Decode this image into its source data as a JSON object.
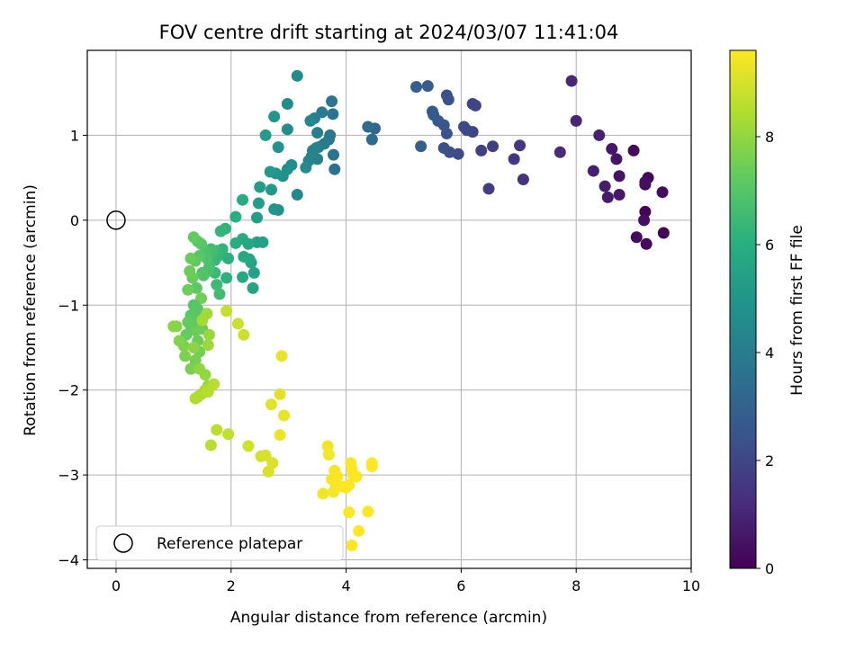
{
  "chart_data": {
    "type": "scatter",
    "title": "FOV centre drift starting at 2024/03/07 11:41:04",
    "xlabel": "Angular distance from reference (arcmin)",
    "ylabel": "Rotation from reference (arcmin)",
    "xlim": [
      -0.5,
      10
    ],
    "ylim": [
      -4.1,
      2.0
    ],
    "xticks": [
      0,
      2,
      4,
      6,
      8,
      10
    ],
    "yticks": [
      -4,
      -3,
      -2,
      -1,
      0,
      1
    ],
    "grid": true,
    "legend": {
      "placement": "lower-left",
      "entries": [
        "Reference platepar"
      ]
    },
    "reference_point": {
      "x": 0,
      "y": 0,
      "label": "Reference platepar"
    },
    "colorbar": {
      "label": "Hours from first FF file",
      "colormap": "viridis",
      "range": [
        0,
        9.6
      ],
      "ticks": [
        0,
        2,
        4,
        6,
        8
      ]
    },
    "points": [
      [
        9.2,
        0.1,
        0.1
      ],
      [
        9.25,
        0.5,
        0.15
      ],
      [
        9.2,
        0.42,
        0.2
      ],
      [
        9.0,
        0.82,
        0.25
      ],
      [
        9.5,
        0.33,
        0.3
      ],
      [
        9.52,
        -0.15,
        0.1
      ],
      [
        9.22,
        -0.28,
        0.2
      ],
      [
        9.05,
        -0.2,
        0.3
      ],
      [
        9.18,
        0.0,
        0.35
      ],
      [
        9.2,
        0.45,
        0.4
      ],
      [
        8.75,
        0.52,
        0.5
      ],
      [
        8.7,
        0.72,
        0.55
      ],
      [
        8.62,
        0.84,
        0.6
      ],
      [
        8.75,
        0.3,
        0.65
      ],
      [
        8.55,
        0.27,
        0.7
      ],
      [
        8.5,
        0.4,
        0.75
      ],
      [
        8.3,
        0.58,
        0.85
      ],
      [
        8.4,
        1.0,
        0.9
      ],
      [
        8.0,
        1.17,
        1.0
      ],
      [
        7.92,
        1.64,
        1.05
      ],
      [
        7.72,
        0.8,
        1.2
      ],
      [
        7.08,
        0.48,
        1.4
      ],
      [
        7.02,
        0.88,
        1.5
      ],
      [
        6.92,
        0.72,
        1.6
      ],
      [
        6.48,
        0.37,
        1.7
      ],
      [
        6.55,
        0.87,
        1.75
      ],
      [
        6.35,
        0.82,
        1.8
      ],
      [
        6.25,
        1.35,
        1.9
      ],
      [
        6.2,
        1.37,
        1.95
      ],
      [
        6.2,
        1.04,
        2.0
      ],
      [
        6.1,
        1.06,
        2.05
      ],
      [
        6.05,
        1.1,
        2.1
      ],
      [
        5.95,
        0.78,
        2.2
      ],
      [
        5.8,
        0.8,
        2.3
      ],
      [
        5.7,
        0.85,
        2.35
      ],
      [
        5.78,
        1.42,
        2.4
      ],
      [
        5.75,
        1.47,
        2.45
      ],
      [
        5.75,
        1.02,
        2.5
      ],
      [
        5.7,
        1.12,
        2.55
      ],
      [
        5.6,
        1.17,
        2.6
      ],
      [
        5.5,
        1.28,
        2.65
      ],
      [
        5.52,
        1.24,
        2.7
      ],
      [
        5.42,
        1.58,
        2.8
      ],
      [
        5.22,
        1.57,
        2.85
      ],
      [
        5.3,
        0.87,
        2.9
      ],
      [
        4.5,
        1.08,
        3.2
      ],
      [
        4.38,
        1.1,
        3.3
      ],
      [
        4.45,
        0.95,
        3.35
      ],
      [
        3.8,
        0.6,
        3.6
      ],
      [
        3.78,
        0.77,
        3.65
      ],
      [
        3.75,
        1.4,
        3.7
      ],
      [
        3.77,
        1.25,
        3.75
      ],
      [
        3.72,
        1.0,
        3.8
      ],
      [
        3.7,
        0.95,
        3.85
      ],
      [
        3.62,
        0.9,
        3.9
      ],
      [
        3.58,
        1.27,
        3.95
      ],
      [
        3.52,
        0.86,
        4.0
      ],
      [
        3.5,
        1.03,
        4.05
      ],
      [
        3.45,
        1.2,
        4.1
      ],
      [
        3.5,
        0.72,
        4.15
      ],
      [
        3.48,
        0.85,
        4.2
      ],
      [
        3.42,
        0.82,
        4.25
      ],
      [
        3.4,
        0.75,
        4.3
      ],
      [
        3.35,
        0.7,
        4.35
      ],
      [
        3.38,
        1.17,
        4.4
      ],
      [
        3.3,
        0.62,
        4.45
      ],
      [
        3.15,
        0.3,
        4.5
      ],
      [
        3.15,
        1.7,
        4.55
      ],
      [
        3.05,
        0.65,
        4.6
      ],
      [
        2.98,
        1.07,
        4.65
      ],
      [
        2.98,
        1.37,
        4.7
      ],
      [
        2.98,
        0.6,
        4.75
      ],
      [
        2.9,
        0.52,
        4.8
      ],
      [
        2.82,
        0.86,
        4.85
      ],
      [
        2.82,
        0.12,
        4.9
      ],
      [
        2.78,
        0.55,
        4.95
      ],
      [
        2.75,
        0.13,
        5.0
      ],
      [
        2.75,
        1.22,
        5.05
      ],
      [
        2.7,
        0.36,
        5.1
      ],
      [
        2.68,
        0.57,
        5.15
      ],
      [
        2.6,
        1.0,
        5.2
      ],
      [
        2.5,
        0.39,
        5.25
      ],
      [
        2.48,
        0.2,
        5.3
      ],
      [
        2.45,
        0.03,
        5.35
      ],
      [
        2.45,
        -0.26,
        5.4
      ],
      [
        2.55,
        -0.26,
        5.45
      ],
      [
        2.4,
        -0.62,
        5.5
      ],
      [
        2.35,
        -0.5,
        5.55
      ],
      [
        2.38,
        -0.8,
        5.6
      ],
      [
        2.32,
        -0.46,
        5.65
      ],
      [
        2.3,
        -0.28,
        5.7
      ],
      [
        2.2,
        -0.67,
        5.75
      ],
      [
        2.22,
        -0.43,
        5.8
      ],
      [
        2.2,
        -0.22,
        5.85
      ],
      [
        2.2,
        0.24,
        5.9
      ],
      [
        2.08,
        -0.27,
        5.95
      ],
      [
        2.08,
        0.04,
        6.0
      ],
      [
        1.95,
        -0.45,
        6.05
      ],
      [
        1.92,
        -0.68,
        6.1
      ],
      [
        1.9,
        -0.1,
        6.15
      ],
      [
        1.85,
        -0.34,
        6.2
      ],
      [
        1.82,
        -0.13,
        6.25
      ],
      [
        1.78,
        -0.42,
        6.3
      ],
      [
        1.75,
        -0.36,
        6.35
      ],
      [
        1.72,
        -0.47,
        6.4
      ],
      [
        1.72,
        -0.62,
        6.45
      ],
      [
        1.75,
        -0.76,
        6.5
      ],
      [
        1.8,
        -0.87,
        6.55
      ],
      [
        1.68,
        -0.36,
        6.6
      ],
      [
        1.65,
        -0.34,
        6.65
      ],
      [
        1.62,
        -0.55,
        6.7
      ],
      [
        1.6,
        -0.6,
        6.75
      ],
      [
        1.58,
        -0.45,
        6.8
      ],
      [
        1.55,
        -0.37,
        6.85
      ],
      [
        1.52,
        -0.65,
        6.9
      ],
      [
        1.5,
        -0.62,
        6.95
      ],
      [
        1.48,
        -0.28,
        7.0
      ],
      [
        1.45,
        -0.42,
        7.05
      ],
      [
        1.42,
        -0.25,
        7.1
      ],
      [
        1.4,
        -0.8,
        7.15
      ],
      [
        1.38,
        -0.48,
        7.2
      ],
      [
        1.35,
        -0.2,
        7.25
      ],
      [
        1.33,
        -0.68,
        7.3
      ],
      [
        1.3,
        -0.45,
        7.35
      ],
      [
        1.28,
        -0.6,
        7.4
      ],
      [
        1.25,
        -0.82,
        7.45
      ],
      [
        1.48,
        -0.92,
        7.5
      ],
      [
        1.42,
        -1.05,
        7.0
      ],
      [
        1.35,
        -1.0,
        7.05
      ],
      [
        1.3,
        -1.12,
        7.1
      ],
      [
        1.42,
        -1.18,
        7.15
      ],
      [
        1.3,
        -1.25,
        7.2
      ],
      [
        1.25,
        -1.2,
        7.25
      ],
      [
        1.22,
        -1.35,
        7.3
      ],
      [
        1.38,
        -1.3,
        7.35
      ],
      [
        1.42,
        -1.42,
        7.4
      ],
      [
        1.5,
        -1.28,
        7.45
      ],
      [
        1.45,
        -1.55,
        7.5
      ],
      [
        1.38,
        -1.65,
        7.55
      ],
      [
        1.3,
        -1.75,
        7.6
      ],
      [
        1.2,
        -1.6,
        7.65
      ],
      [
        1.18,
        -1.48,
        7.7
      ],
      [
        1.1,
        -1.42,
        7.75
      ],
      [
        1.05,
        -1.25,
        7.8
      ],
      [
        1.0,
        -1.25,
        7.85
      ],
      [
        1.35,
        -1.5,
        7.9
      ],
      [
        1.45,
        -1.75,
        7.95
      ],
      [
        1.55,
        -1.82,
        8.0
      ],
      [
        1.6,
        -1.95,
        8.05
      ],
      [
        1.62,
        -1.35,
        8.1
      ],
      [
        1.6,
        -1.47,
        8.15
      ],
      [
        1.58,
        -1.1,
        8.2
      ],
      [
        1.5,
        -1.18,
        8.25
      ],
      [
        1.55,
        -2.0,
        8.3
      ],
      [
        1.48,
        -2.05,
        8.35
      ],
      [
        1.42,
        -2.08,
        8.4
      ],
      [
        1.38,
        -2.1,
        8.45
      ],
      [
        1.6,
        -2.02,
        8.5
      ],
      [
        1.7,
        -1.93,
        8.55
      ],
      [
        1.65,
        -2.65,
        8.6
      ],
      [
        1.75,
        -2.47,
        8.65
      ],
      [
        1.95,
        -2.52,
        8.7
      ],
      [
        1.92,
        -1.07,
        8.75
      ],
      [
        2.12,
        -1.22,
        8.8
      ],
      [
        2.22,
        -1.35,
        8.85
      ],
      [
        2.3,
        -2.66,
        8.9
      ],
      [
        2.52,
        -2.78,
        8.95
      ],
      [
        2.6,
        -2.77,
        9.0
      ],
      [
        2.65,
        -2.96,
        9.05
      ],
      [
        2.72,
        -2.86,
        9.1
      ],
      [
        2.7,
        -2.17,
        9.15
      ],
      [
        2.85,
        -2.05,
        9.2
      ],
      [
        2.92,
        -2.3,
        9.25
      ],
      [
        2.88,
        -1.6,
        9.3
      ],
      [
        2.85,
        -2.53,
        9.35
      ],
      [
        3.6,
        -3.22,
        9.4
      ],
      [
        3.68,
        -2.66,
        9.42
      ],
      [
        3.7,
        -2.76,
        9.44
      ],
      [
        3.75,
        -3.05,
        9.46
      ],
      [
        3.78,
        -3.2,
        9.48
      ],
      [
        3.82,
        -3.12,
        9.5
      ],
      [
        3.8,
        -2.95,
        9.52
      ],
      [
        3.85,
        -3.02,
        9.54
      ],
      [
        4.0,
        -3.15,
        9.56
      ],
      [
        4.05,
        -3.12,
        9.58
      ],
      [
        4.08,
        -2.86,
        9.6
      ],
      [
        4.1,
        -2.93,
        9.6
      ],
      [
        4.12,
        -3.0,
        9.6
      ],
      [
        4.18,
        -3.02,
        9.6
      ],
      [
        4.05,
        -3.44,
        9.6
      ],
      [
        4.1,
        -3.83,
        9.6
      ],
      [
        4.22,
        -3.66,
        9.6
      ],
      [
        4.38,
        -3.43,
        9.6
      ],
      [
        4.45,
        -2.9,
        9.6
      ],
      [
        4.45,
        -2.86,
        9.6
      ],
      [
        3.95,
        -3.14,
        9.6
      ]
    ]
  }
}
